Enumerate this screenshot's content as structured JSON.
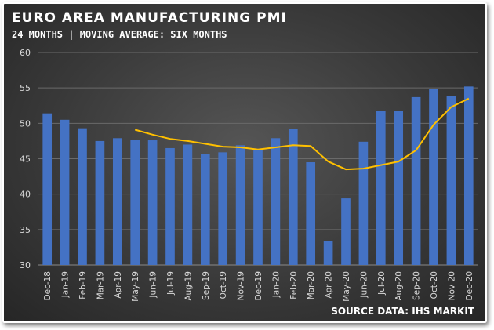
{
  "header": {
    "title": "EURO AREA MANUFACTURING PMI",
    "subtitle": "24 MONTHS | MOVING AVERAGE: SIX MONTHS"
  },
  "footer": {
    "source": "SOURCE DATA: IHS MARKIT"
  },
  "colors": {
    "bar": "#4472C4",
    "line": "#FFC000",
    "grid": "#6a6a6a",
    "text": "#d9d9d9"
  },
  "chart_data": {
    "type": "bar",
    "categories": [
      "Dec-18",
      "Jan-19",
      "Feb-19",
      "Mar-19",
      "Apr-19",
      "May-19",
      "Jun-19",
      "Jul-19",
      "Aug-19",
      "Sep-19",
      "Oct-19",
      "Nov-19",
      "Dec-19",
      "Jan-20",
      "Feb-20",
      "Mar-20",
      "Apr-20",
      "May-20",
      "Jun-20",
      "Jul-20",
      "Aug-20",
      "Sep-20",
      "Oct-20",
      "Nov-20",
      "Dec-20"
    ],
    "series": [
      {
        "type": "bar",
        "values": [
          51.4,
          50.5,
          49.3,
          47.5,
          47.9,
          47.7,
          47.6,
          46.5,
          47.0,
          45.7,
          45.9,
          46.9,
          46.3,
          47.9,
          49.2,
          44.5,
          33.4,
          39.4,
          47.4,
          51.8,
          51.7,
          53.7,
          54.8,
          53.8,
          55.2
        ]
      },
      {
        "type": "line",
        "values": [
          null,
          null,
          null,
          null,
          null,
          49.1,
          48.4,
          47.8,
          47.5,
          47.1,
          46.7,
          46.6,
          46.3,
          46.6,
          46.9,
          46.8,
          44.6,
          43.5,
          43.6,
          44.1,
          44.6,
          46.2,
          49.8,
          52.3,
          53.5
        ]
      }
    ],
    "ylim": [
      30,
      60
    ],
    "yticks": [
      30,
      35,
      40,
      45,
      50,
      55,
      60
    ],
    "grid": true,
    "xlabel": "",
    "ylabel": ""
  }
}
